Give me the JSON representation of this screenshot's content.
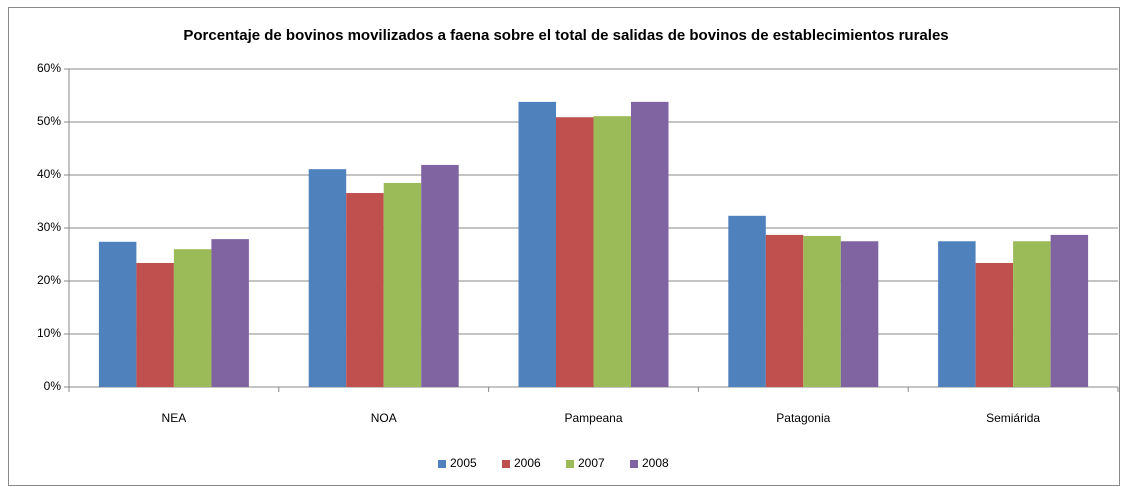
{
  "chart_data": {
    "type": "bar",
    "title": "Porcentaje de bovinos movilizados a faena sobre el total de salidas de bovinos de establecimientos rurales",
    "categories": [
      "NEA",
      "NOA",
      "Pampeana",
      "Patagonia",
      "Semiárida"
    ],
    "series": [
      {
        "name": "2005",
        "color": "#4f81bd",
        "values": [
          27.4,
          41.1,
          53.8,
          32.3,
          27.5
        ]
      },
      {
        "name": "2006",
        "color": "#c0504d",
        "values": [
          23.4,
          36.6,
          50.9,
          28.7,
          23.4
        ]
      },
      {
        "name": "2007",
        "color": "#9bbb59",
        "values": [
          26.0,
          38.5,
          51.1,
          28.5,
          27.5
        ]
      },
      {
        "name": "2008",
        "color": "#8064a2",
        "values": [
          27.9,
          41.9,
          53.8,
          27.5,
          28.7
        ]
      }
    ],
    "ylim": [
      0,
      60
    ],
    "yticks": [
      {
        "value": 0,
        "label": "0%"
      },
      {
        "value": 10,
        "label": "10%"
      },
      {
        "value": 20,
        "label": "20%"
      },
      {
        "value": 30,
        "label": "30%"
      },
      {
        "value": 40,
        "label": "40%"
      },
      {
        "value": 50,
        "label": "50%"
      },
      {
        "value": 60,
        "label": "60%"
      }
    ],
    "grid": true,
    "legend": "bottom"
  }
}
